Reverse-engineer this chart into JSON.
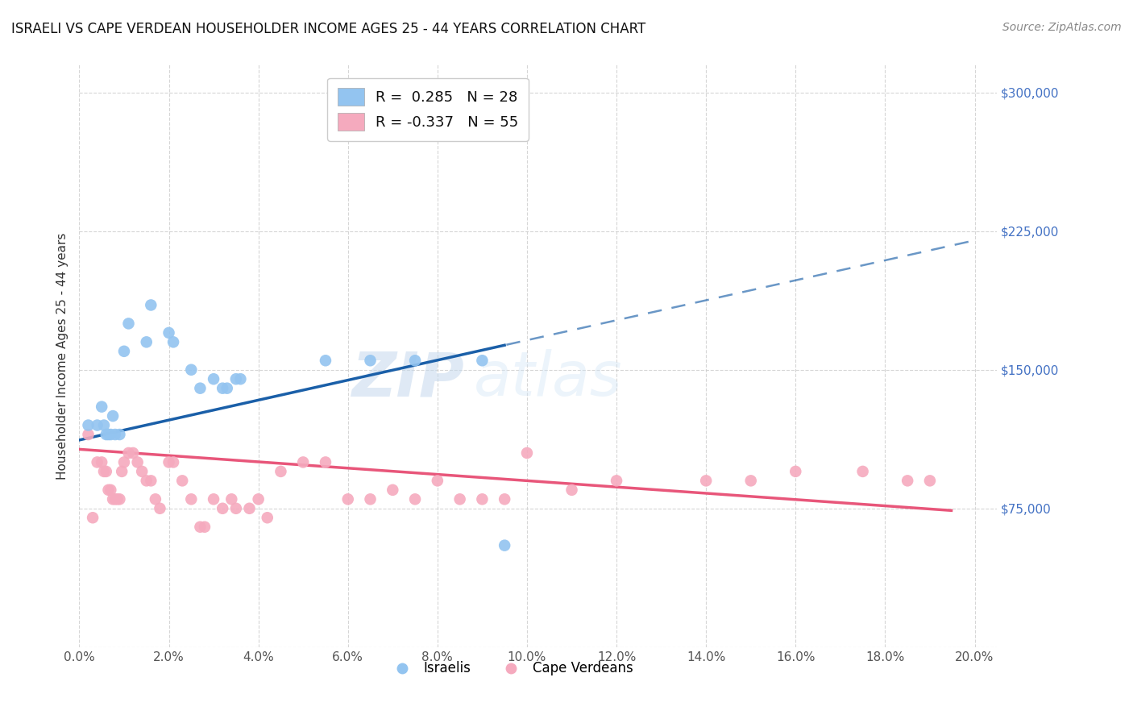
{
  "title": "ISRAELI VS CAPE VERDEAN HOUSEHOLDER INCOME AGES 25 - 44 YEARS CORRELATION CHART",
  "source": "Source: ZipAtlas.com",
  "xlabel_ticks": [
    "0.0%",
    "2.0%",
    "4.0%",
    "6.0%",
    "8.0%",
    "10.0%",
    "12.0%",
    "14.0%",
    "16.0%",
    "18.0%",
    "20.0%"
  ],
  "xlabel_vals": [
    0.0,
    2.0,
    4.0,
    6.0,
    8.0,
    10.0,
    12.0,
    14.0,
    16.0,
    18.0,
    20.0
  ],
  "ylabel_ticks": [
    0,
    75000,
    150000,
    225000,
    300000
  ],
  "ylabel_labels": [
    "",
    "$75,000",
    "$150,000",
    "$225,000",
    "$300,000"
  ],
  "xlim": [
    0.0,
    20.5
  ],
  "ylim": [
    20000,
    315000
  ],
  "ylabel": "Householder Income Ages 25 - 44 years",
  "legend_israeli_r": "R =  0.285",
  "legend_israeli_n": "N = 28",
  "legend_cape_r": "R = -0.337",
  "legend_cape_n": "N = 55",
  "israeli_color": "#93c4f0",
  "cape_color": "#f5aabe",
  "israeli_line_color": "#1a5fa8",
  "cape_line_color": "#e8567a",
  "watermark_zip": "ZIP",
  "watermark_atlas": "atlas",
  "israeli_x": [
    0.2,
    0.4,
    0.5,
    0.55,
    0.6,
    0.65,
    0.7,
    0.75,
    0.8,
    0.9,
    1.0,
    1.1,
    1.5,
    1.6,
    2.0,
    2.1,
    2.5,
    2.7,
    3.0,
    3.2,
    3.3,
    3.5,
    3.6,
    5.5,
    6.5,
    7.5,
    9.0,
    9.5
  ],
  "israeli_y": [
    120000,
    120000,
    130000,
    120000,
    115000,
    115000,
    115000,
    125000,
    115000,
    115000,
    160000,
    175000,
    165000,
    185000,
    170000,
    165000,
    150000,
    140000,
    145000,
    140000,
    140000,
    145000,
    145000,
    155000,
    155000,
    155000,
    155000,
    55000
  ],
  "cape_x": [
    0.2,
    0.3,
    0.4,
    0.5,
    0.55,
    0.6,
    0.65,
    0.7,
    0.75,
    0.8,
    0.85,
    0.9,
    0.95,
    1.0,
    1.1,
    1.2,
    1.3,
    1.4,
    1.5,
    1.6,
    1.7,
    1.8,
    2.0,
    2.1,
    2.3,
    2.5,
    2.7,
    2.8,
    3.0,
    3.2,
    3.4,
    3.5,
    3.8,
    4.0,
    4.2,
    4.5,
    5.0,
    5.5,
    6.0,
    6.5,
    7.0,
    7.5,
    8.0,
    8.5,
    9.0,
    9.5,
    10.0,
    11.0,
    12.0,
    14.0,
    15.0,
    16.0,
    17.5,
    18.5,
    19.0
  ],
  "cape_y": [
    115000,
    70000,
    100000,
    100000,
    95000,
    95000,
    85000,
    85000,
    80000,
    80000,
    80000,
    80000,
    95000,
    100000,
    105000,
    105000,
    100000,
    95000,
    90000,
    90000,
    80000,
    75000,
    100000,
    100000,
    90000,
    80000,
    65000,
    65000,
    80000,
    75000,
    80000,
    75000,
    75000,
    80000,
    70000,
    95000,
    100000,
    100000,
    80000,
    80000,
    85000,
    80000,
    90000,
    80000,
    80000,
    80000,
    105000,
    85000,
    90000,
    90000,
    90000,
    95000,
    95000,
    90000,
    90000
  ],
  "grid_color": "#cccccc",
  "background_color": "#ffffff",
  "israeli_line_x0": 0.0,
  "israeli_line_y0": 112000,
  "israeli_line_x1": 20.0,
  "israeli_line_y1": 220000,
  "cape_line_x0": 0.0,
  "cape_line_y0": 107000,
  "cape_line_x1": 20.0,
  "cape_line_y1": 73000,
  "israeli_solid_end": 9.5,
  "cape_solid_end": 19.5
}
